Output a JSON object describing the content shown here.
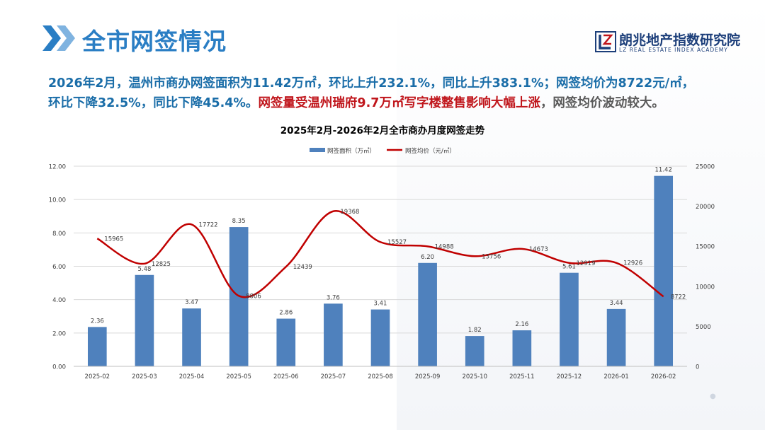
{
  "header": {
    "title": "全市网签情况",
    "logo_cn": "朗兆地产指数研究院",
    "logo_en": "LZ REAL ESTATE INDEX ACADEMY"
  },
  "summary": {
    "line1": "2026年2月，温州市商办网签面积为11.42万㎡，环比上升232.1%，同比上升383.1%；网签均价为8722元/㎡，",
    "line2_part1": "环比下降32.5%，同比下降45.4%。",
    "line2_part2": "网签量受温州瑞府9.7万㎡写字楼整售影响大幅上涨",
    "line2_part3": "，网签均价波动较大。"
  },
  "colors": {
    "bar": "#4f81bd",
    "line": "#c00000",
    "title_blue": "#2a7ec4"
  },
  "chart_data": {
    "type": "bar",
    "title": "2025年2月-2026年2月全市商办月度网签走势",
    "categories": [
      "2025-02",
      "2025-03",
      "2025-04",
      "2025-05",
      "2025-06",
      "2025-07",
      "2025-08",
      "2025-09",
      "2025-10",
      "2025-11",
      "2025-12",
      "2026-01",
      "2026-02"
    ],
    "series": [
      {
        "name": "网签面积（万㎡）",
        "type": "bar",
        "axis": "left",
        "values": [
          2.36,
          5.48,
          3.47,
          8.35,
          2.86,
          3.76,
          3.41,
          6.2,
          1.82,
          2.16,
          5.61,
          3.44,
          11.42
        ],
        "labels": [
          "2.36",
          "5.48",
          "3.47",
          "8.35",
          "2.86",
          "3.76",
          "3.41",
          "6.20",
          "1.82",
          "2.16",
          "5.61",
          "3.44",
          "11.42"
        ]
      },
      {
        "name": "网签均价（元/㎡）",
        "type": "line",
        "axis": "right",
        "values": [
          15965,
          12825,
          17722,
          8806,
          12439,
          19368,
          15527,
          14988,
          13756,
          14673,
          12919,
          12926,
          8722
        ],
        "labels": [
          "15965",
          "12825",
          "17722",
          "8806",
          "12439",
          "19368",
          "15527",
          "14988",
          "13756",
          "14673",
          "12919",
          "12926",
          "8722"
        ]
      }
    ],
    "y_left": {
      "range": [
        0,
        12
      ],
      "ticks": [
        "0.00",
        "2.00",
        "4.00",
        "6.00",
        "8.00",
        "10.00",
        "12.00"
      ]
    },
    "y_right": {
      "range": [
        0,
        25000
      ],
      "ticks": [
        "0",
        "5000",
        "10000",
        "15000",
        "20000",
        "25000"
      ]
    },
    "grid": true,
    "legend": "top-center"
  }
}
